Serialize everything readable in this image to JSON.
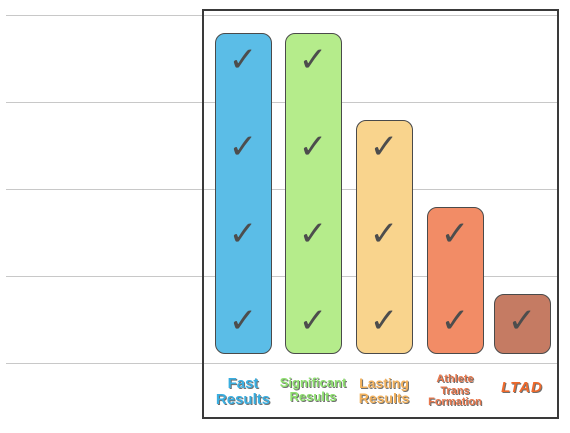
{
  "chart_data": {
    "type": "bar",
    "categories": [
      "Fast Results",
      "Significant Results",
      "Lasting Results",
      "Athlete Trans Formation",
      "LTAD"
    ],
    "label_lines": [
      [
        "Fast",
        "Results"
      ],
      [
        "Significant",
        "Results"
      ],
      [
        "Lasting",
        "Results"
      ],
      [
        "Athlete",
        "Trans",
        "Formation"
      ],
      [
        "LTAD"
      ]
    ],
    "values": [
      4,
      4,
      3,
      2,
      1
    ],
    "ylim": [
      0,
      4
    ],
    "grid": true,
    "title": "",
    "xlabel": "",
    "ylabel": "",
    "mark_icon": "checkmark-icon",
    "mark_glyph": "✓",
    "colors": [
      "#5bbde7",
      "#b5ec8b",
      "#f9d48d",
      "#f28c66",
      "#c57b63"
    ]
  }
}
